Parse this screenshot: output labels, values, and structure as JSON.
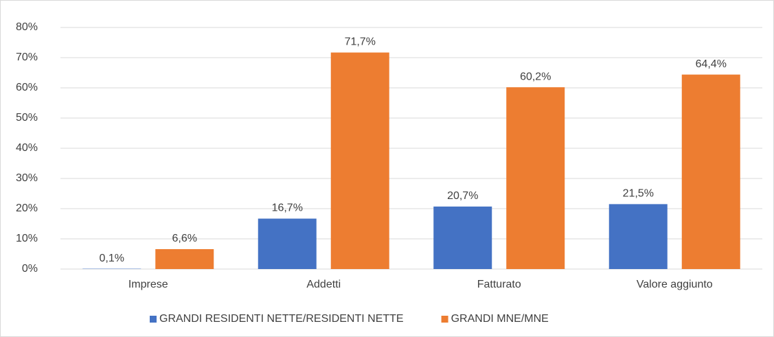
{
  "chart_data": {
    "type": "bar",
    "categories": [
      "Imprese",
      "Addetti",
      "Fatturato",
      "Valore aggiunto"
    ],
    "series": [
      {
        "name": "GRANDI RESIDENTI NETTE/RESIDENTI NETTE",
        "color": "#4472c4",
        "values": [
          0.1,
          16.7,
          20.7,
          21.5
        ],
        "value_labels": [
          "0,1%",
          "16,7%",
          "20,7%",
          "21,5%"
        ]
      },
      {
        "name": "GRANDI MNE/MNE",
        "color": "#ed7d31",
        "values": [
          6.6,
          71.7,
          60.2,
          64.4
        ],
        "value_labels": [
          "6,6%",
          "71,7%",
          "60,2%",
          "64,4%"
        ]
      }
    ],
    "ylim": [
      0,
      80
    ],
    "yticks": [
      {
        "value": 0,
        "label": "0%"
      },
      {
        "value": 10,
        "label": "10%"
      },
      {
        "value": 20,
        "label": "20%"
      },
      {
        "value": 30,
        "label": "30%"
      },
      {
        "value": 40,
        "label": "40%"
      },
      {
        "value": 50,
        "label": "50%"
      },
      {
        "value": 60,
        "label": "60%"
      },
      {
        "value": 70,
        "label": "70%"
      },
      {
        "value": 80,
        "label": "80%"
      }
    ],
    "grid": true,
    "legend": "bottom"
  }
}
